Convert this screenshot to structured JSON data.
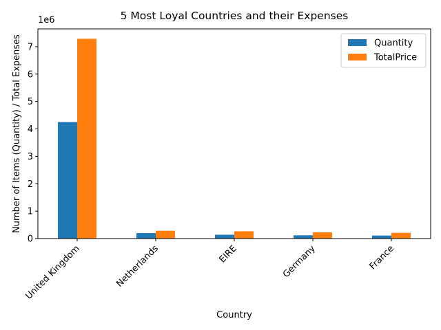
{
  "chart_data": {
    "type": "bar",
    "title": "5 Most Loyal Countries and their Expenses",
    "xlabel": "Country",
    "ylabel": "Number of Items (Quantity) / Total Expenses",
    "offset_label": "1e6",
    "categories": [
      "United Kingdom",
      "Netherlands",
      "EIRE",
      "Germany",
      "France"
    ],
    "series": [
      {
        "name": "Quantity",
        "color": "#1f77b4",
        "values": [
          4250000,
          200000,
          140000,
          118000,
          110000
        ]
      },
      {
        "name": "TotalPrice",
        "color": "#ff7f0e",
        "values": [
          7290000,
          285000,
          265000,
          228000,
          209000
        ]
      }
    ],
    "ylim": [
      0,
      7650000
    ],
    "yticks": [
      0,
      1000000,
      2000000,
      3000000,
      4000000,
      5000000,
      6000000,
      7000000
    ],
    "ytick_labels": [
      "0",
      "1",
      "2",
      "3",
      "4",
      "5",
      "6",
      "7"
    ],
    "grid": false,
    "legend_position": "top-right"
  }
}
